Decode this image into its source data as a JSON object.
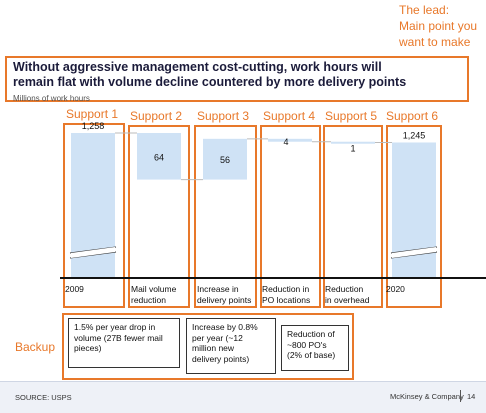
{
  "annotation": {
    "lead_lines": [
      "The lead:",
      "Main point you",
      "want to make"
    ],
    "backup": "Backup"
  },
  "title": {
    "line1": "Without aggressive management cost-cutting, work hours will",
    "line2": "remain flat with volume decline countered by more delivery points",
    "unit": "Millions of work hours"
  },
  "supports": [
    "Support 1",
    "Support 2",
    "Support 3",
    "Support 4",
    "Support 5",
    "Support 6"
  ],
  "chart_data": {
    "type": "bar",
    "subtype": "waterfall",
    "categories": [
      "2009",
      "Mail volume reduction",
      "Increase in delivery points",
      "Reduction in PO locations",
      "Reduction in overhead",
      "2020"
    ],
    "values": [
      1258,
      -64,
      56,
      -4,
      -1,
      1245
    ],
    "data_labels": [
      "1,258",
      "64",
      "56",
      "4",
      "1",
      "1,245"
    ],
    "axis_break": true,
    "ylabel": "Millions of work hours"
  },
  "category_labels": [
    [
      "2009"
    ],
    [
      "Mail volume",
      "reduction"
    ],
    [
      "Increase in",
      "delivery points"
    ],
    [
      "Reduction in",
      "PO locations"
    ],
    [
      "Reduction",
      "in overhead"
    ],
    [
      "2020"
    ]
  ],
  "notes": [
    [
      "1.5% per year drop in",
      "volume (27B fewer mail",
      "pieces)"
    ],
    [
      "Increase by 0.8%",
      "per year (~12",
      "million new",
      "delivery points)"
    ],
    [
      "Reduction of",
      "~800 PO's",
      "(2% of base)"
    ]
  ],
  "footer": {
    "source": "SOURCE: USPS",
    "company": "McKinsey & Company",
    "page": "14"
  },
  "colors": {
    "bar": "#cfe2f5",
    "accent": "#e8782a",
    "title": "#1b1b3a"
  }
}
